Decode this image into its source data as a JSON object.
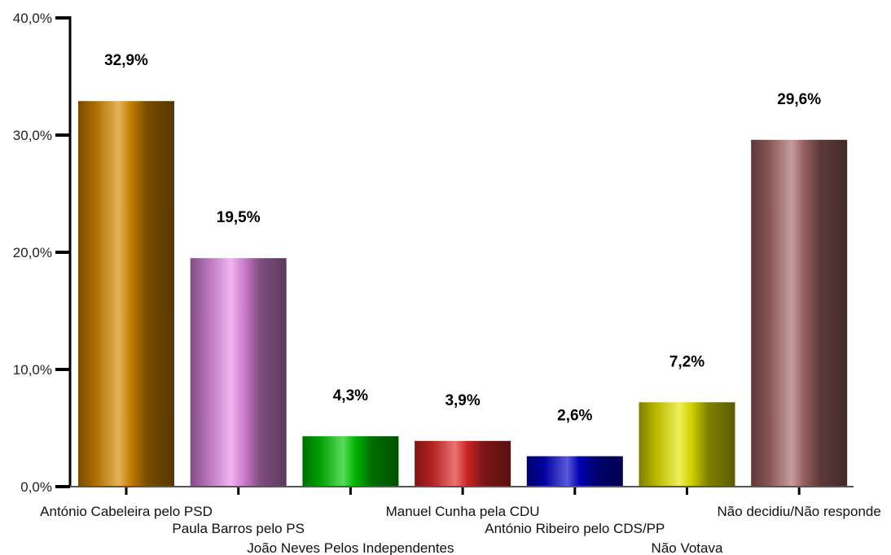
{
  "chart_data": {
    "type": "bar",
    "categories": [
      "António Cabeleira pelo PSD",
      "Paula Barros pelo PS",
      "João Neves Pelos Independentes",
      "Manuel Cunha pela CDU",
      "António Ribeiro pelo CDS/PP",
      "Não Votava",
      "Não decidiu/Não responde"
    ],
    "values": [
      32.9,
      19.5,
      4.3,
      3.9,
      2.6,
      7.2,
      29.6
    ],
    "data_labels": [
      "32,9%",
      "19,5%",
      "4,3%",
      "3,9%",
      "2,6%",
      "7,2%",
      "29,6%"
    ],
    "yticks": [
      0,
      10,
      20,
      30,
      40
    ],
    "ytick_labels": [
      "0,0%",
      "10,0%",
      "20,0%",
      "30,0%",
      "40,0%"
    ],
    "ylim": [
      0,
      40
    ],
    "grid": false,
    "legend": "none",
    "bar_colors": [
      "#d88a00",
      "#e68de8",
      "#00c800",
      "#e02828",
      "#0000c8",
      "#e6e600",
      "#a86868"
    ],
    "title": "",
    "xlabel": "",
    "ylabel": ""
  }
}
